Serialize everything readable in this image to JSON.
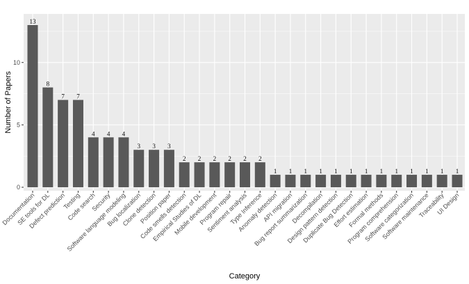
{
  "chart_data": {
    "type": "bar",
    "categories": [
      "Documentation",
      "SE tools for DL",
      "Defect prediction",
      "Testing",
      "Code search",
      "Security",
      "Software language modeling",
      "Bug localization",
      "Clone detection",
      "Position paper",
      "Code smells detection",
      "Empirical Studies of DL",
      "Mobile development",
      "Program repair",
      "Sentiment analysis",
      "Type Inference",
      "Anomaly detection",
      "API migration",
      "Bug report summarization",
      "Decompilation",
      "Design pattern detection",
      "Duplicate Bug Detection",
      "Effort estimation",
      "Formal methods",
      "Program comprehension",
      "Software categorization",
      "Software maintenance",
      "Traceability",
      "UI Design"
    ],
    "values": [
      13,
      8,
      7,
      7,
      4,
      4,
      4,
      3,
      3,
      3,
      2,
      2,
      2,
      2,
      2,
      2,
      1,
      1,
      1,
      1,
      1,
      1,
      1,
      1,
      1,
      1,
      1,
      1,
      1
    ],
    "data_labels": [
      "13",
      "8",
      "7",
      "7",
      "4",
      "4",
      "4",
      "3",
      "3",
      "3",
      "2",
      "2",
      "2",
      "2",
      "2",
      "2",
      "1",
      "1",
      "1",
      "1",
      "1",
      "1",
      "1",
      "1",
      "1",
      "1",
      "1",
      "1",
      "1"
    ],
    "yticks": [
      0,
      5,
      10
    ],
    "ytick_labels": [
      "0",
      "5",
      "10"
    ],
    "xlabel": "Category",
    "ylabel": "Number of Papers",
    "ylim": [
      0,
      13.65
    ],
    "grid": true,
    "colors": {
      "panel": "#ebebeb",
      "grid_major": "#ffffff",
      "bar": "#595959"
    }
  }
}
